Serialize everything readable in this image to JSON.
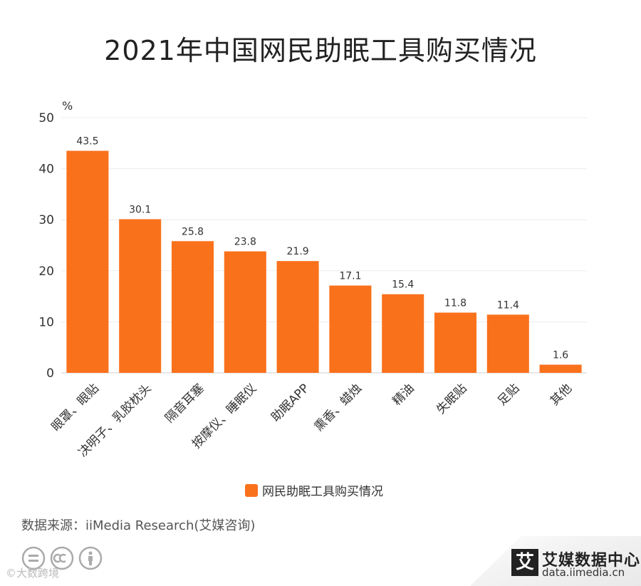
{
  "chart_data": {
    "type": "bar",
    "title": "2021年中国网民助眠工具购买情况",
    "ylabel": "%",
    "ylim": [
      0,
      50
    ],
    "yticks": [
      0,
      10,
      20,
      30,
      40,
      50
    ],
    "grid": true,
    "legend_position": "bottom",
    "categories": [
      "眼罩、眼贴",
      "决明子、乳胶枕头",
      "隔音耳塞",
      "按摩仪、睡眠仪",
      "助眠APP",
      "熏香、蜡烛",
      "精油",
      "失眠贴",
      "足贴",
      "其他"
    ],
    "series": [
      {
        "name": "网民助眠工具购买情况",
        "color": "#fa711c",
        "values": [
          43.5,
          30.1,
          25.8,
          23.8,
          21.9,
          17.1,
          15.4,
          11.8,
          11.4,
          1.6
        ]
      }
    ]
  },
  "source": "数据来源：iiMedia Research(艾媒咨询)",
  "watermark": "©大数跨境",
  "brand": {
    "logo_char": "艾",
    "name": "艾媒数据中心",
    "url": "data.iimedia.cn"
  }
}
